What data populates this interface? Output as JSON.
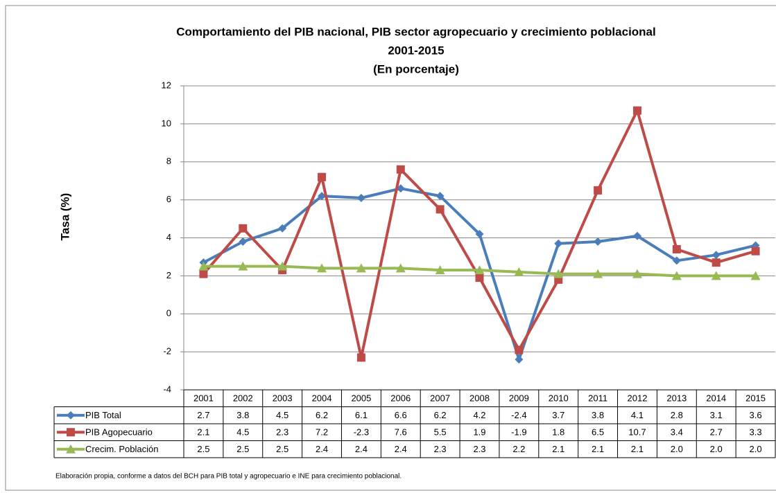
{
  "chart_data": {
    "type": "line",
    "title": [
      "Comportamiento del PIB nacional,  PIB sector agropecuario  y crecimiento poblacional",
      "2001-2015",
      "(En porcentaje)"
    ],
    "y_label": "Tasa (%)",
    "categories": [
      "2001",
      "2002",
      "2003",
      "2004",
      "2005",
      "2006",
      "2007",
      "2008",
      "2009",
      "2010",
      "2011",
      "2012",
      "2013",
      "2014",
      "2015"
    ],
    "series": [
      {
        "name": "PIB Total",
        "color": "#4a7ebb",
        "marker": "diamond",
        "values": [
          2.7,
          3.8,
          4.5,
          6.2,
          6.1,
          6.6,
          6.2,
          4.2,
          -2.4,
          3.7,
          3.8,
          4.1,
          2.8,
          3.1,
          3.6
        ],
        "value_labels": [
          "2.7",
          "3.8",
          "4.5",
          "6.2",
          "6.1",
          "6.6",
          "6.2",
          "4.2",
          "-2.4",
          "3.7",
          "3.8",
          "4.1",
          "2.8",
          "3.1",
          "3.6"
        ]
      },
      {
        "name": "PIB Agopecuario",
        "color": "#be4b48",
        "marker": "square",
        "values": [
          2.1,
          4.5,
          2.3,
          7.2,
          -2.3,
          7.6,
          5.5,
          1.9,
          -1.9,
          1.8,
          6.5,
          10.7,
          3.4,
          2.7,
          3.3
        ],
        "value_labels": [
          "2.1",
          "4.5",
          "2.3",
          "7.2",
          "-2.3",
          "7.6",
          "5.5",
          "1.9",
          "-1.9",
          "1.8",
          "6.5",
          "10.7",
          "3.4",
          "2.7",
          "3.3"
        ]
      },
      {
        "name": "Crecim. Población",
        "color": "#98b954",
        "marker": "triangle",
        "values": [
          2.5,
          2.5,
          2.5,
          2.4,
          2.4,
          2.4,
          2.3,
          2.3,
          2.2,
          2.1,
          2.1,
          2.1,
          2.0,
          2.0,
          2.0
        ],
        "value_labels": [
          "2.5",
          "2.5",
          "2.5",
          "2.4",
          "2.4",
          "2.4",
          "2.3",
          "2.3",
          "2.2",
          "2.1",
          "2.1",
          "2.1",
          "2.0",
          "2.0",
          "2.0"
        ]
      }
    ],
    "ylim": [
      -4,
      12
    ],
    "yticks": [
      -4,
      -2,
      0,
      2,
      4,
      6,
      8,
      10,
      12
    ],
    "grid": true,
    "footnote": "Elaboración propia, conforme a datos del BCH para PIB total y agropecuario e INE para crecimiento poblacional."
  }
}
